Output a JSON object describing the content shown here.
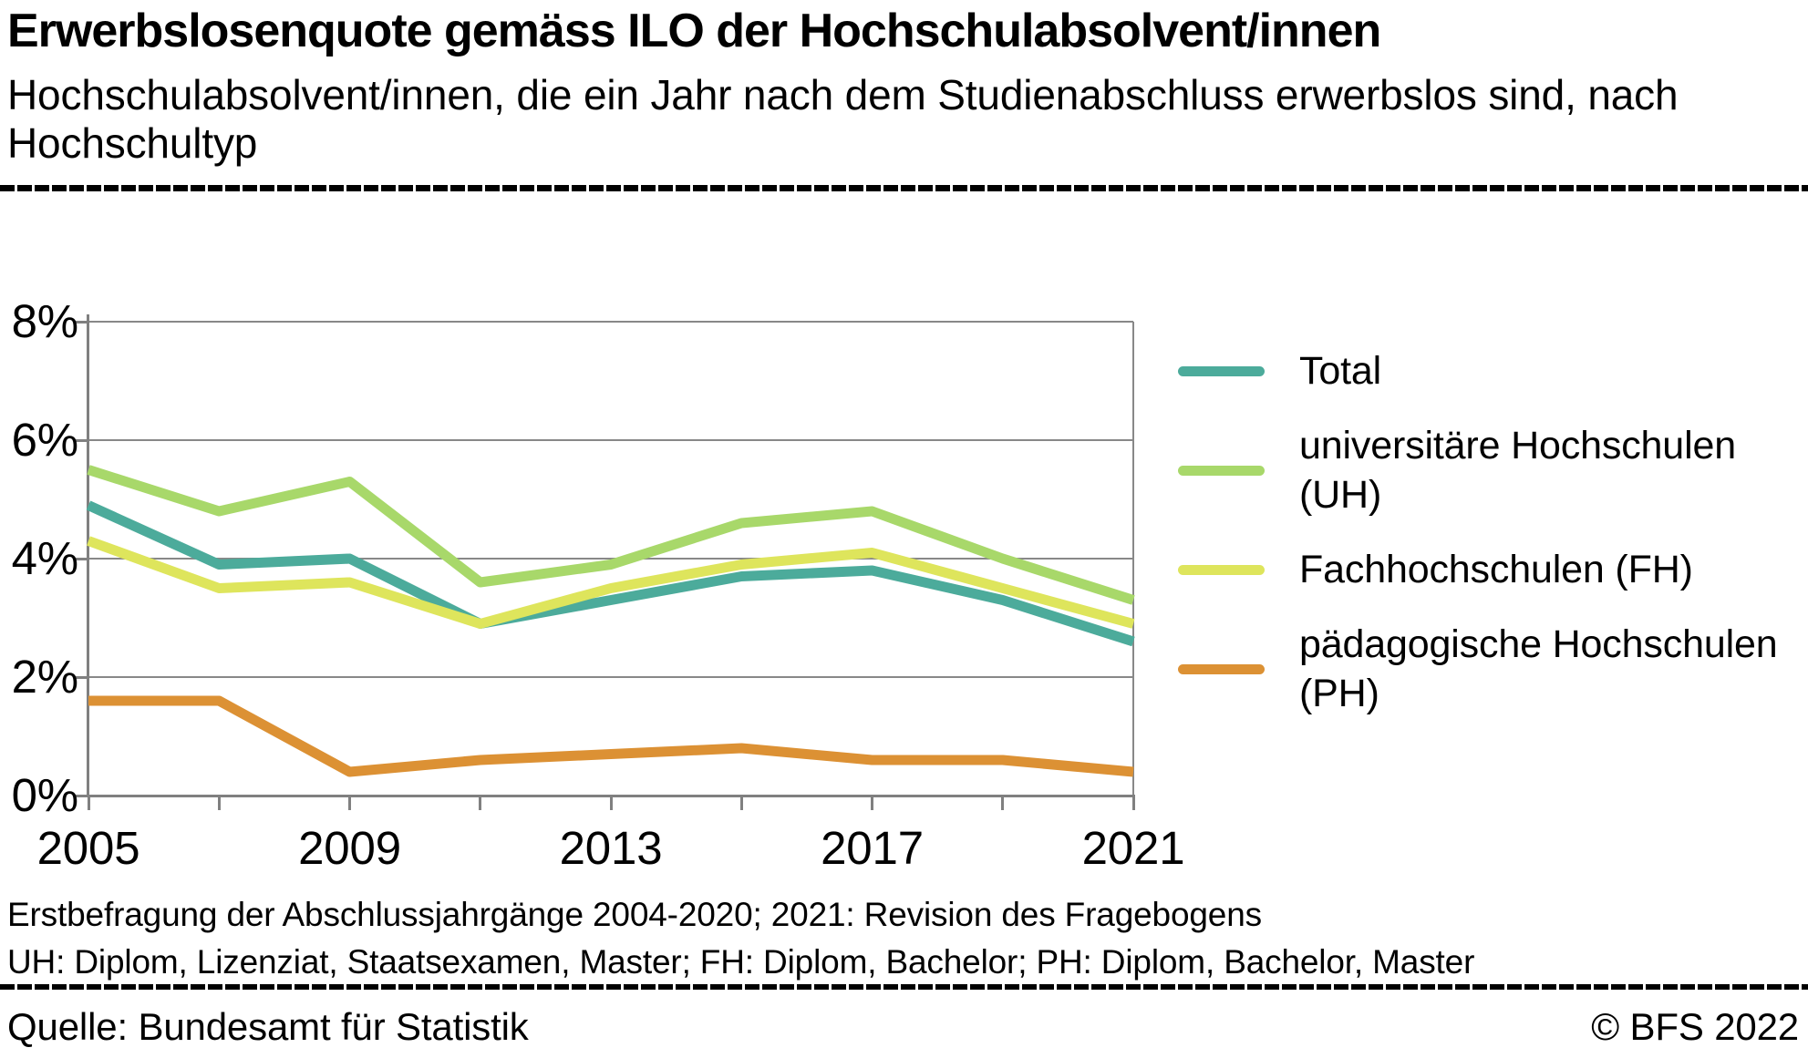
{
  "header": {
    "title": "Erwerbslosenquote gemäss ILO der Hochschulabsolvent/innen",
    "subtitle_line1": "Hochschulabsolvent/innen, die ein Jahr nach dem Studienabschluss erwerbslos sind, nach",
    "subtitle_line2": "Hochschultyp"
  },
  "chart_data": {
    "type": "line",
    "x": [
      2005,
      2007,
      2009,
      2011,
      2013,
      2015,
      2017,
      2019,
      2021
    ],
    "series": [
      {
        "name": "Total",
        "color": "#4CAB9B",
        "values": [
          4.9,
          3.9,
          4.0,
          2.9,
          3.3,
          3.7,
          3.8,
          3.3,
          2.6
        ]
      },
      {
        "name": "universitäre Hochschulen (UH)",
        "color": "#A8D86A",
        "values": [
          5.5,
          4.8,
          5.3,
          3.6,
          3.9,
          4.6,
          4.8,
          4.0,
          3.3
        ]
      },
      {
        "name": "Fachhochschulen (FH)",
        "color": "#DEE55C",
        "values": [
          4.3,
          3.5,
          3.6,
          2.9,
          3.5,
          3.9,
          4.1,
          3.5,
          2.9
        ]
      },
      {
        "name": "pädagogische Hochschulen (PH)",
        "color": "#DC9134",
        "values": [
          1.6,
          1.6,
          0.4,
          0.6,
          0.7,
          0.8,
          0.6,
          0.6,
          0.4
        ]
      }
    ],
    "title": "Erwerbslosenquote gemäss ILO der Hochschulabsolvent/innen",
    "xlabel": "",
    "ylabel": "",
    "ylim": [
      0,
      8
    ],
    "xlim": [
      2005,
      2021
    ],
    "y_ticks": [
      {
        "value": 0,
        "label": "0%"
      },
      {
        "value": 2,
        "label": "2%"
      },
      {
        "value": 4,
        "label": "4%"
      },
      {
        "value": 6,
        "label": "6%"
      },
      {
        "value": 8,
        "label": "8%"
      }
    ],
    "x_labeled_ticks": [
      {
        "value": 2005,
        "label": "2005"
      },
      {
        "value": 2009,
        "label": "2009"
      },
      {
        "value": 2013,
        "label": "2013"
      },
      {
        "value": 2017,
        "label": "2017"
      },
      {
        "value": 2021,
        "label": "2021"
      }
    ],
    "grid": true,
    "grid_color": "#888888",
    "legend_position": "right"
  },
  "legend": {
    "items": [
      {
        "lines": [
          "Total"
        ],
        "color": "#4CAB9B"
      },
      {
        "lines": [
          "universitäre Hochschulen",
          "(UH)"
        ],
        "color": "#A8D86A"
      },
      {
        "lines": [
          "Fachhochschulen (FH)"
        ],
        "color": "#DEE55C"
      },
      {
        "lines": [
          "pädagogische Hochschulen",
          "(PH)"
        ],
        "color": "#DC9134"
      }
    ]
  },
  "footnotes": {
    "line1": "Erstbefragung der Abschlussjahrgänge 2004-2020; 2021: Revision des Fragebogens",
    "line2": "UH: Diplom, Lizenziat, Staatsexamen, Master; FH: Diplom, Bachelor; PH: Diplom, Bachelor, Master"
  },
  "footer": {
    "source": "Quelle: Bundesamt für Statistik",
    "copyright": "© BFS 2022"
  }
}
